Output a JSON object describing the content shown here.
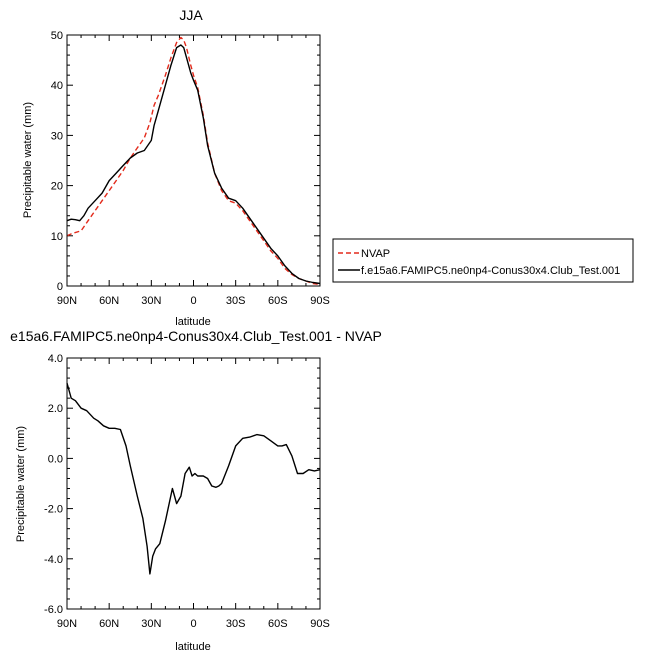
{
  "chart_data": [
    {
      "type": "line",
      "title": "JJA",
      "xlabel": "latitude",
      "ylabel": "Precipitable water (mm)",
      "xlim": [
        90,
        -90
      ],
      "ylim": [
        0,
        50
      ],
      "x_ticks": [
        90,
        60,
        30,
        0,
        -30,
        -60,
        -90
      ],
      "x_tick_labels": [
        "90N",
        "60N",
        "30N",
        "0",
        "30S",
        "60S",
        "90S"
      ],
      "y_ticks": [
        0,
        10,
        20,
        30,
        40,
        50
      ],
      "y_tick_labels": [
        "0",
        "10",
        "20",
        "30",
        "40",
        "50"
      ],
      "legend_position": "right",
      "series": [
        {
          "name": "NVAP",
          "color": "#e32a1b",
          "dash": "dashed",
          "x": [
            90,
            86,
            80,
            75,
            70,
            65,
            60,
            55,
            50,
            45,
            40,
            35,
            31,
            28,
            25,
            20,
            16,
            12,
            9,
            7,
            5,
            2,
            0,
            -3,
            -7,
            -10,
            -15,
            -20,
            -25,
            -30,
            -35,
            -40,
            -45,
            -50,
            -55,
            -60,
            -65,
            -70,
            -75,
            -80,
            -85,
            -90
          ],
          "y": [
            10,
            10.5,
            11,
            13,
            15,
            17,
            19,
            21,
            23,
            25.5,
            27.5,
            29.5,
            32.5,
            36,
            38,
            42,
            45.5,
            48.5,
            49.5,
            49,
            47.5,
            44,
            42,
            39.5,
            34,
            28.5,
            22.5,
            19,
            17,
            16.5,
            15,
            13,
            11,
            9,
            7,
            5.5,
            3.5,
            2.3,
            1.5,
            1,
            0.5,
            0.3
          ]
        },
        {
          "name": "f.e15a6.FAMIPC5.ne0np4-Conus30x4.Club_Test.001",
          "color": "#000000",
          "dash": "solid",
          "x": [
            90,
            87,
            84,
            81,
            78,
            75,
            70,
            65,
            60,
            55,
            50,
            45,
            40,
            35,
            30,
            28,
            25,
            20,
            16,
            12,
            9,
            7,
            5,
            2,
            0,
            -3,
            -7,
            -10,
            -15,
            -20,
            -25,
            -30,
            -35,
            -40,
            -45,
            -50,
            -55,
            -60,
            -65,
            -70,
            -75,
            -80,
            -85,
            -90
          ],
          "y": [
            13,
            13.3,
            13.2,
            13,
            14,
            15.5,
            17,
            18.5,
            21,
            22.5,
            24,
            25.5,
            26.5,
            27,
            29,
            32,
            35,
            40,
            44,
            47.5,
            48,
            47.5,
            45.5,
            42.5,
            41,
            39,
            33.5,
            28,
            22.5,
            19.5,
            17.5,
            17,
            15.5,
            13.5,
            11.5,
            9.5,
            7.5,
            6,
            4,
            2.5,
            1.5,
            1,
            0.7,
            0.5
          ]
        }
      ]
    },
    {
      "type": "line",
      "title": "e15a6.FAMIPC5.ne0np4-Conus30x4.Club_Test.001 - NVAP",
      "xlabel": "latitude",
      "ylabel": "Precipitable water (mm)",
      "xlim": [
        90,
        -90
      ],
      "ylim": [
        -6,
        4
      ],
      "x_ticks": [
        90,
        60,
        30,
        0,
        -30,
        -60,
        -90
      ],
      "x_tick_labels": [
        "90N",
        "60N",
        "30N",
        "0",
        "30S",
        "60S",
        "90S"
      ],
      "y_ticks": [
        -6,
        -4,
        -2,
        0,
        2,
        4
      ],
      "y_tick_labels": [
        "-6.0",
        "-4.0",
        "-2.0",
        "0.0",
        "2.0",
        "4.0"
      ],
      "series": [
        {
          "color": "#000000",
          "x": [
            90,
            87,
            84,
            80,
            76,
            71,
            68,
            64,
            60,
            56,
            52,
            48,
            45,
            40,
            36,
            33,
            31,
            29,
            27,
            24,
            20,
            15,
            12,
            9,
            6,
            3,
            1,
            -1,
            -3,
            -5,
            -7,
            -10,
            -13,
            -16,
            -18,
            -20,
            -25,
            -30,
            -35,
            -40,
            -45,
            -50,
            -55,
            -60,
            -63,
            -66,
            -70,
            -74,
            -78,
            -82,
            -86,
            -90
          ],
          "y": [
            3,
            2.4,
            2.3,
            2,
            1.9,
            1.6,
            1.5,
            1.3,
            1.2,
            1.2,
            1.15,
            0.5,
            -0.3,
            -1.5,
            -2.4,
            -3.5,
            -4.6,
            -3.9,
            -3.6,
            -3.4,
            -2.5,
            -1.2,
            -1.8,
            -1.5,
            -0.6,
            -0.35,
            -0.7,
            -0.6,
            -0.7,
            -0.7,
            -0.7,
            -0.8,
            -1.1,
            -1.15,
            -1.1,
            -1.0,
            -0.3,
            0.5,
            0.8,
            0.85,
            0.95,
            0.9,
            0.7,
            0.5,
            0.5,
            0.55,
            0.1,
            -0.6,
            -0.6,
            -0.45,
            -0.5,
            -0.45
          ]
        }
      ]
    }
  ]
}
